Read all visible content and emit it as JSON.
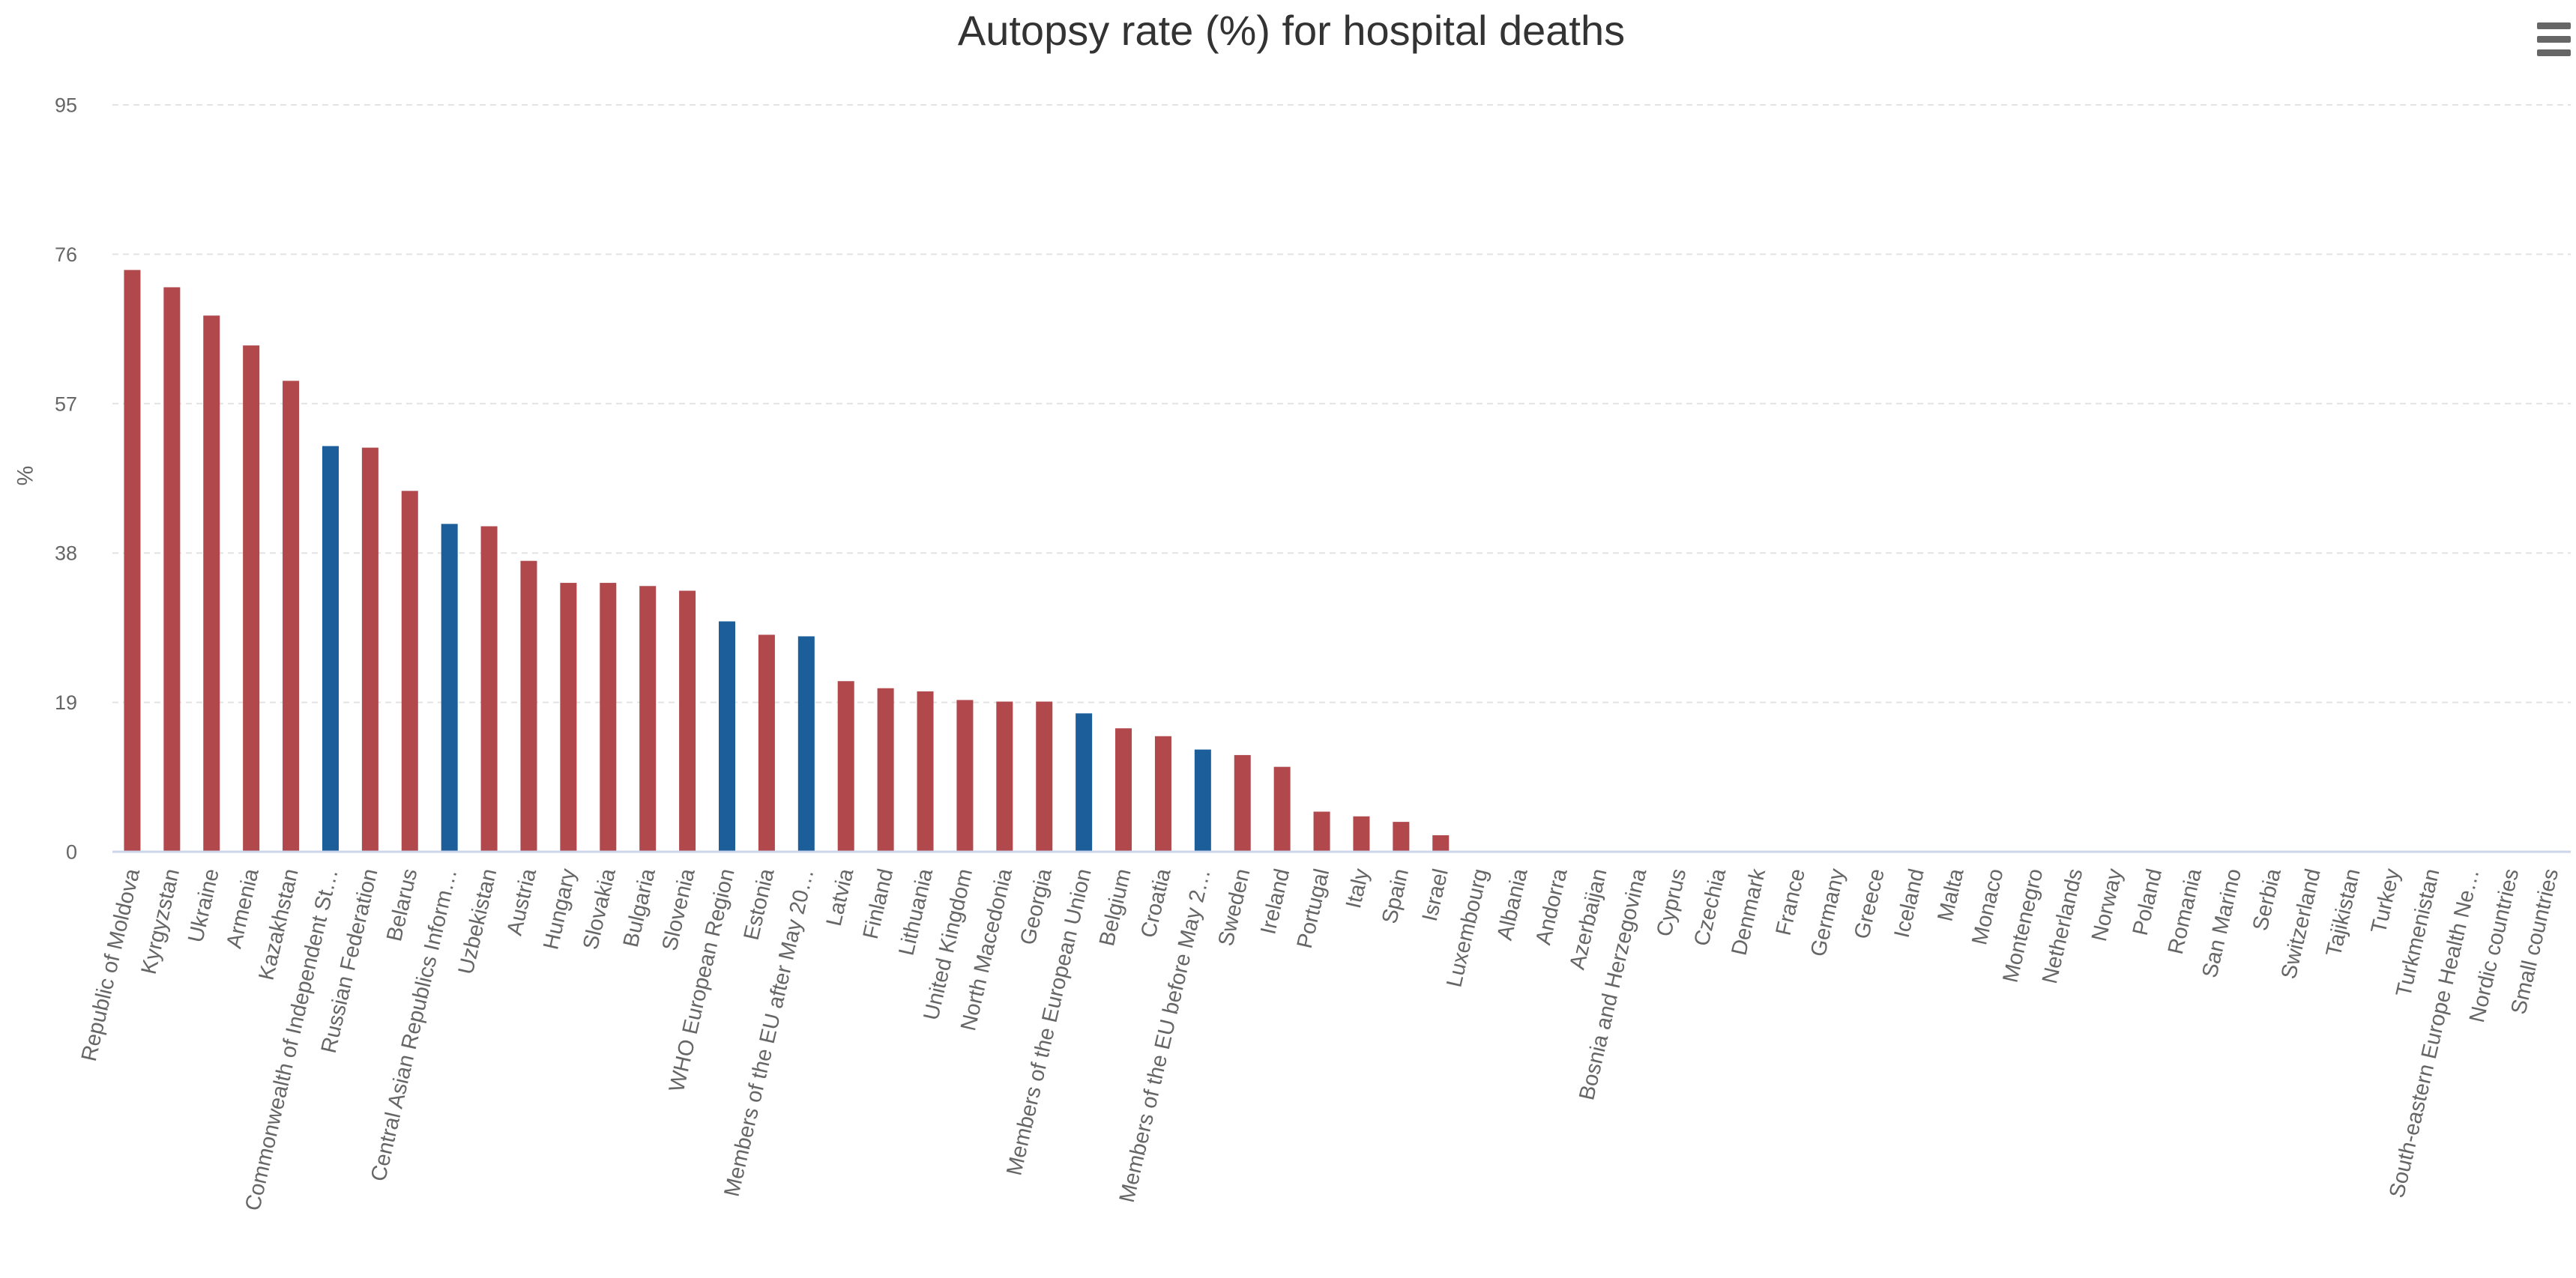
{
  "chart_data": {
    "type": "bar",
    "title": "Autopsy rate (%) for hospital deaths",
    "xlabel": "",
    "ylabel": "%",
    "ylim": [
      0,
      95
    ],
    "y_ticks": [
      0,
      19,
      38,
      57,
      76,
      95
    ],
    "grid": true,
    "legend": "none",
    "categories": [
      "Republic of Moldova",
      "Kyrgyzstan",
      "Ukraine",
      "Armenia",
      "Kazakhstan",
      "Commonwealth of Independent St…",
      "Russian Federation",
      "Belarus",
      "Central Asian Republics Inform…",
      "Uzbekistan",
      "Austria",
      "Hungary",
      "Slovakia",
      "Bulgaria",
      "Slovenia",
      "WHO European Region",
      "Estonia",
      "Members of the EU after May 20…",
      "Latvia",
      "Finland",
      "Lithuania",
      "United Kingdom",
      "North Macedonia",
      "Georgia",
      "Members of the European Union",
      "Belgium",
      "Croatia",
      "Members of the EU before May 2…",
      "Sweden",
      "Ireland",
      "Portugal",
      "Italy",
      "Spain",
      "Israel",
      "Luxembourg",
      "Albania",
      "Andorra",
      "Azerbaijan",
      "Bosnia and Herzegovina",
      "Cyprus",
      "Czechia",
      "Denmark",
      "France",
      "Germany",
      "Greece",
      "Iceland",
      "Malta",
      "Monaco",
      "Montenegro",
      "Netherlands",
      "Norway",
      "Poland",
      "Romania",
      "San Marino",
      "Serbia",
      "Switzerland",
      "Tajikistan",
      "Turkey",
      "Turkmenistan",
      "South-eastern Europe Health Ne…",
      "Nordic countries",
      "Small countries"
    ],
    "values": [
      74.0,
      71.8,
      68.2,
      64.4,
      59.9,
      51.6,
      51.4,
      45.9,
      41.7,
      41.4,
      37.0,
      34.2,
      34.2,
      33.8,
      33.2,
      29.3,
      27.6,
      27.4,
      21.7,
      20.8,
      20.4,
      19.3,
      19.1,
      19.1,
      17.6,
      15.7,
      14.7,
      13.0,
      12.3,
      10.8,
      5.1,
      4.5,
      3.8,
      2.1,
      0,
      0,
      0,
      0,
      0,
      0,
      0,
      0,
      0,
      0,
      0,
      0,
      0,
      0,
      0,
      0,
      0,
      0,
      0,
      0,
      0,
      0,
      0,
      0,
      0,
      0,
      0,
      0
    ],
    "point_types": [
      "country",
      "country",
      "country",
      "country",
      "country",
      "aggregate",
      "country",
      "country",
      "aggregate",
      "country",
      "country",
      "country",
      "country",
      "country",
      "country",
      "aggregate",
      "country",
      "aggregate",
      "country",
      "country",
      "country",
      "country",
      "country",
      "country",
      "aggregate",
      "country",
      "country",
      "aggregate",
      "country",
      "country",
      "country",
      "country",
      "country",
      "country",
      "country",
      "country",
      "country",
      "country",
      "country",
      "country",
      "country",
      "country",
      "country",
      "country",
      "country",
      "country",
      "country",
      "country",
      "country",
      "country",
      "country",
      "country",
      "country",
      "country",
      "country",
      "country",
      "country",
      "country",
      "country",
      "aggregate",
      "aggregate",
      "aggregate"
    ],
    "colors": {
      "country": "#b0484c",
      "aggregate": "#1b5e9a"
    }
  },
  "menu": {
    "icon": "hamburger-menu-icon"
  }
}
